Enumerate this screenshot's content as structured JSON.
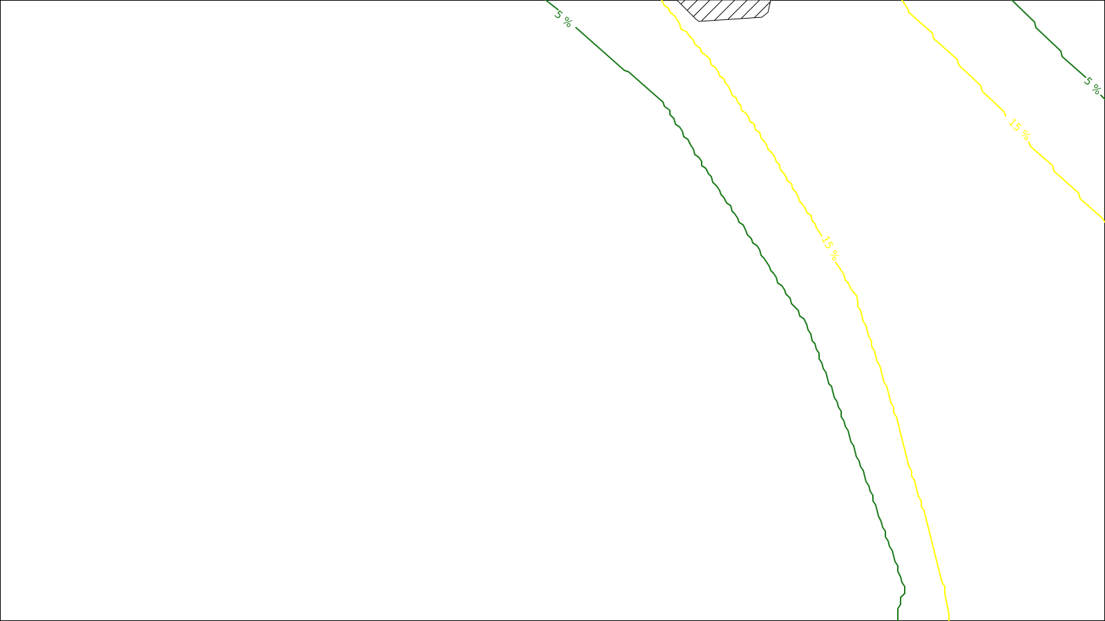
{
  "contours": {
    "green": {
      "level_label": "5 %",
      "color": "#1a7a1a"
    },
    "yellow": {
      "level_label": "15 %",
      "color": "#ffff00"
    }
  },
  "hatched_area": {
    "icon": "hatched-polygon",
    "color": "#000000"
  },
  "frame_color": "#000000"
}
